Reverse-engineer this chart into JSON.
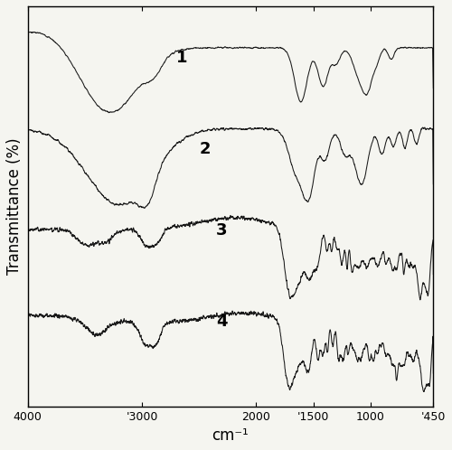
{
  "title": "",
  "xlabel": "cm⁻¹",
  "ylabel": "Transmittance (%)",
  "x_min": 450,
  "x_max": 4000,
  "background_color": "#f5f5f0",
  "line_color": "#1a1a1a",
  "label_fontsize": 12,
  "tick_fontsize": 9,
  "spectrum_labels": [
    "1",
    "2",
    "3",
    "4"
  ],
  "xtick_labels": [
    "4000",
    "'3000",
    "2000",
    "'1500",
    "1000",
    "'450"
  ],
  "xtick_vals": [
    4000,
    3000,
    2000,
    1500,
    1000,
    450
  ]
}
